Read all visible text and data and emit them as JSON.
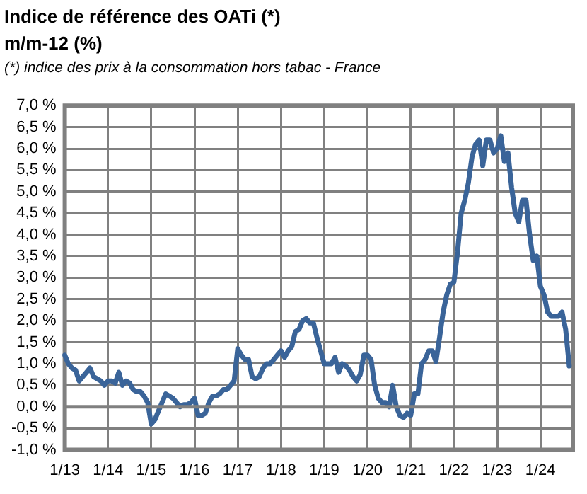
{
  "chart_data": {
    "type": "line",
    "title": "Indice de référence des OATi (*)",
    "subtitle": "m/m-12 (%)",
    "annotations": [
      "(*) indice des prix à la consommation hors tabac - France"
    ],
    "categories": [
      "1/13",
      null,
      null,
      null,
      null,
      null,
      null,
      null,
      null,
      null,
      null,
      null,
      "1/14",
      null,
      null,
      null,
      null,
      null,
      null,
      null,
      null,
      null,
      null,
      null,
      "1/15",
      null,
      null,
      null,
      null,
      null,
      null,
      null,
      null,
      null,
      null,
      null,
      "1/16",
      null,
      null,
      null,
      null,
      null,
      null,
      null,
      null,
      null,
      null,
      null,
      "1/17",
      null,
      null,
      null,
      null,
      null,
      null,
      null,
      null,
      null,
      null,
      null,
      "1/18",
      null,
      null,
      null,
      null,
      null,
      null,
      null,
      null,
      null,
      null,
      null,
      "1/19",
      null,
      null,
      null,
      null,
      null,
      null,
      null,
      null,
      null,
      null,
      null,
      "1/20",
      null,
      null,
      null,
      null,
      null,
      null,
      null,
      null,
      null,
      null,
      null,
      "1/21",
      null,
      null,
      null,
      null,
      null,
      null,
      null,
      null,
      null,
      null,
      null,
      "1/22",
      null,
      null,
      null,
      null,
      null,
      null,
      null,
      null,
      null,
      null,
      null,
      "1/23",
      null,
      null,
      null,
      null,
      null,
      null,
      null,
      null,
      null,
      null,
      null,
      "1/24",
      null,
      null,
      null,
      null,
      null,
      null,
      null,
      null,
      null
    ],
    "series": [
      {
        "color": "#3a6499",
        "values": [
          1.2,
          1.0,
          0.9,
          0.85,
          0.6,
          0.7,
          0.8,
          0.9,
          0.7,
          0.65,
          0.6,
          0.5,
          0.6,
          0.6,
          0.55,
          0.8,
          0.5,
          0.6,
          0.55,
          0.4,
          0.35,
          0.35,
          0.25,
          0.1,
          -0.4,
          -0.3,
          -0.1,
          0.1,
          0.3,
          0.25,
          0.2,
          0.1,
          0.0,
          0.05,
          0.05,
          0.1,
          0.2,
          -0.2,
          -0.2,
          -0.15,
          0.1,
          0.25,
          0.25,
          0.3,
          0.4,
          0.4,
          0.5,
          0.6,
          1.35,
          1.2,
          1.1,
          1.1,
          0.7,
          0.65,
          0.7,
          0.9,
          1.0,
          1.0,
          1.1,
          1.2,
          1.3,
          1.15,
          1.3,
          1.4,
          1.75,
          1.8,
          2.0,
          2.05,
          1.95,
          1.95,
          1.6,
          1.3,
          1.0,
          1.0,
          1.0,
          1.15,
          0.8,
          1.0,
          0.95,
          0.85,
          0.7,
          0.6,
          0.75,
          1.2,
          1.2,
          1.1,
          0.5,
          0.2,
          0.1,
          0.1,
          0.0,
          0.5,
          0.0,
          -0.2,
          -0.25,
          -0.15,
          -0.2,
          0.3,
          0.3,
          1.0,
          1.1,
          1.3,
          1.3,
          1.05,
          1.6,
          2.2,
          2.6,
          2.85,
          2.9,
          3.6,
          4.5,
          4.8,
          5.2,
          5.8,
          6.1,
          6.2,
          5.6,
          6.2,
          6.2,
          5.9,
          6.0,
          6.3,
          5.7,
          5.9,
          5.1,
          4.5,
          4.3,
          4.8,
          4.8,
          4.0,
          3.4,
          3.5,
          2.8,
          2.6,
          2.2,
          2.1,
          2.1,
          2.1,
          2.2,
          1.8,
          0.95,
          null
        ]
      }
    ],
    "ylim": [
      -1,
      7
    ],
    "yticks": [
      {
        "value": -1,
        "label": "-1,0 %"
      },
      {
        "value": -0.5,
        "label": "-0,5 %"
      },
      {
        "value": 0,
        "label": "0,0 %"
      },
      {
        "value": 0.5,
        "label": "0,5 %"
      },
      {
        "value": 1,
        "label": "1,0 %"
      },
      {
        "value": 1.5,
        "label": "1,5 %"
      },
      {
        "value": 2,
        "label": "2,0 %"
      },
      {
        "value": 2.5,
        "label": "2,5 %"
      },
      {
        "value": 3,
        "label": "3,0 %"
      },
      {
        "value": 3.5,
        "label": "3,5 %"
      },
      {
        "value": 4,
        "label": "4,0 %"
      },
      {
        "value": 4.5,
        "label": "4,5 %"
      },
      {
        "value": 5,
        "label": "5,0 %"
      },
      {
        "value": 5.5,
        "label": "5,5 %"
      },
      {
        "value": 6,
        "label": "6,0 %"
      },
      {
        "value": 6.5,
        "label": "6,5 %"
      },
      {
        "value": 7,
        "label": "7,0 %"
      }
    ],
    "ref_lines": [
      {
        "axis": "y",
        "value": 0,
        "color": "#808080"
      }
    ],
    "grid": true,
    "legend": false,
    "marker": "none",
    "line_style": "solid"
  }
}
